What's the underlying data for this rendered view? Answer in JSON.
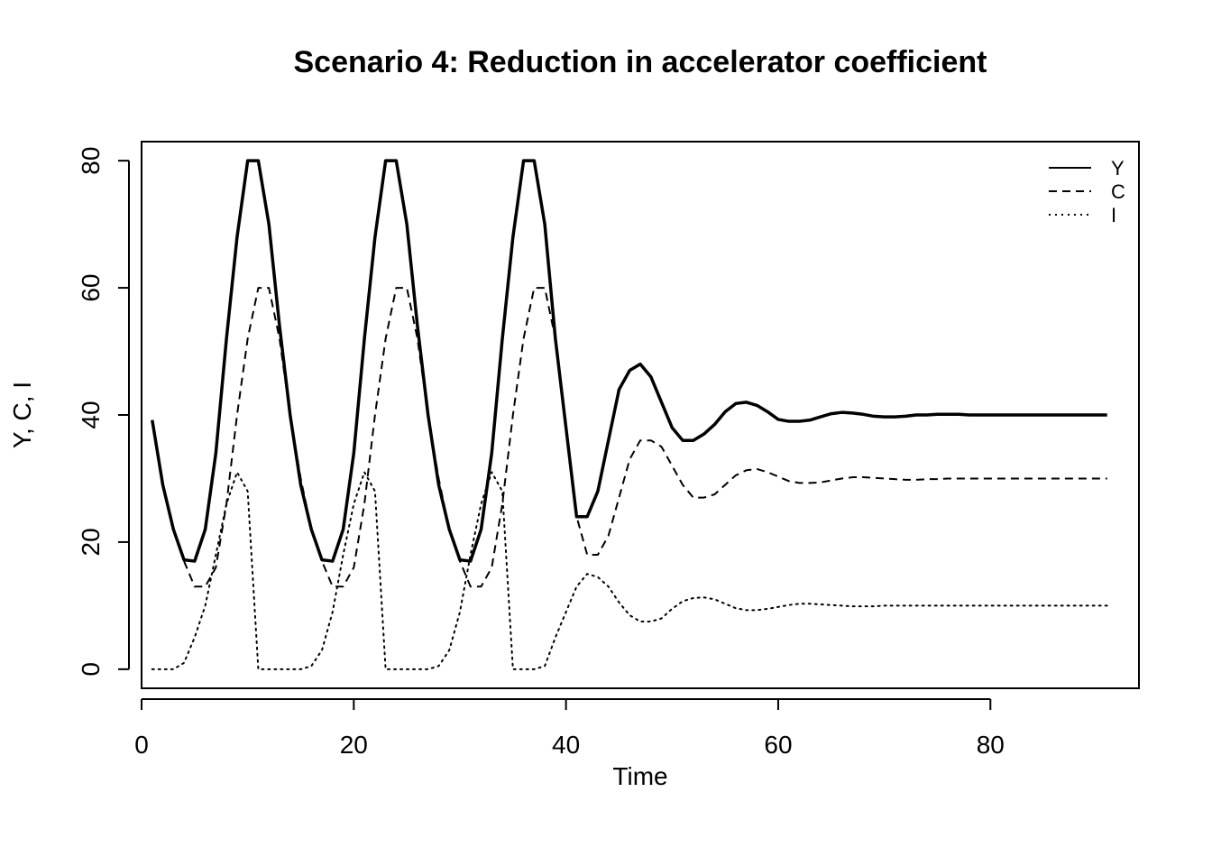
{
  "chart_data": {
    "type": "line",
    "title": "Scenario 4: Reduction in accelerator coefficient",
    "xlabel": "Time",
    "ylabel": "Y, C, I",
    "xlim": [
      0,
      94
    ],
    "ylim": [
      -3,
      83
    ],
    "xticks": [
      0,
      20,
      40,
      60,
      80
    ],
    "yticks": [
      0,
      20,
      40,
      60,
      80
    ],
    "legend_position": "top-right",
    "grid": false,
    "x": [
      1,
      2,
      3,
      4,
      5,
      6,
      7,
      8,
      9,
      10,
      11,
      12,
      13,
      14,
      15,
      16,
      17,
      18,
      19,
      20,
      21,
      22,
      23,
      24,
      25,
      26,
      27,
      28,
      29,
      30,
      31,
      32,
      33,
      34,
      35,
      36,
      37,
      38,
      39,
      40,
      41,
      42,
      43,
      44,
      45,
      46,
      47,
      48,
      49,
      50,
      51,
      52,
      53,
      54,
      55,
      56,
      57,
      58,
      59,
      60,
      61,
      62,
      63,
      64,
      65,
      66,
      67,
      68,
      69,
      70,
      71,
      72,
      73,
      74,
      75,
      76,
      77,
      78,
      79,
      80,
      81,
      82,
      83,
      84,
      85,
      86,
      87,
      88,
      89,
      90,
      91
    ],
    "series": [
      {
        "name": "Y",
        "style": "solid",
        "values": [
          39.2,
          29,
          22,
          17.2,
          17,
          22,
          34,
          52,
          68,
          80,
          80,
          70,
          54,
          40,
          29,
          22,
          17.2,
          17,
          22,
          34,
          52,
          68,
          80,
          80,
          70,
          54,
          40,
          29,
          22,
          17.2,
          17,
          22,
          34,
          52,
          68,
          80,
          80,
          70,
          52,
          38,
          24,
          24,
          28,
          36,
          44,
          47,
          48,
          46,
          42,
          38,
          36,
          36,
          37,
          38.5,
          40.5,
          41.8,
          42,
          41.5,
          40.5,
          39.3,
          39,
          39,
          39.2,
          39.7,
          40.2,
          40.4,
          40.3,
          40.1,
          39.8,
          39.7,
          39.7,
          39.8,
          40,
          40,
          40.1,
          40.1,
          40.1,
          40,
          40,
          40,
          40,
          40,
          40,
          40,
          40,
          40,
          40,
          40,
          40,
          40,
          40
        ]
      },
      {
        "name": "C",
        "style": "dashed",
        "values": [
          null,
          null,
          null,
          17,
          13,
          13,
          16,
          26,
          40,
          52,
          60,
          60,
          52,
          40,
          30,
          22,
          17,
          13,
          13,
          16,
          26,
          40,
          52,
          60,
          60,
          52,
          40,
          30,
          22,
          17,
          13,
          13,
          16,
          26,
          40,
          52,
          60,
          60,
          52,
          38,
          24,
          18,
          18,
          21,
          27,
          33,
          36,
          36,
          35,
          32,
          29,
          27,
          27,
          27.5,
          29,
          30.5,
          31.3,
          31.5,
          31,
          30.3,
          29.6,
          29.3,
          29.3,
          29.4,
          29.7,
          30,
          30.2,
          30.2,
          30.1,
          30,
          29.9,
          29.8,
          29.8,
          29.9,
          29.9,
          30,
          30,
          30,
          30,
          30,
          30,
          30,
          30,
          30,
          30,
          30,
          30,
          30,
          30,
          30,
          30
        ]
      },
      {
        "name": "I",
        "style": "dotted",
        "values": [
          0,
          0,
          0,
          1,
          5,
          10,
          18,
          26,
          31,
          28,
          0,
          0,
          0,
          0,
          0,
          0.5,
          3,
          9,
          18,
          26,
          31,
          28,
          0,
          0,
          0,
          0,
          0,
          0.5,
          3,
          9,
          18,
          26,
          31,
          28,
          0,
          0,
          0,
          0.5,
          5,
          9,
          13,
          15,
          14.5,
          13,
          10.5,
          8.5,
          7.5,
          7.5,
          8,
          9.5,
          10.7,
          11.2,
          11.3,
          11,
          10.3,
          9.6,
          9.3,
          9.3,
          9.5,
          9.8,
          10.1,
          10.3,
          10.3,
          10.2,
          10.1,
          10,
          9.9,
          9.9,
          9.9,
          10,
          10,
          10,
          10,
          10,
          10,
          10,
          10,
          10,
          10,
          10,
          10,
          10,
          10,
          10,
          10,
          10,
          10,
          10,
          10,
          10,
          10
        ]
      }
    ]
  }
}
